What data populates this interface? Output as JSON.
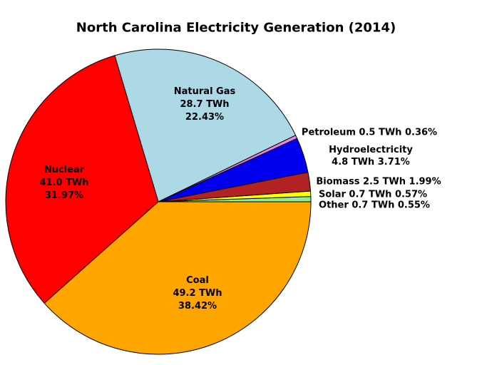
{
  "title": "North Carolina Electricity Generation (2014)",
  "chart_data": {
    "type": "pie",
    "title": "North Carolina Electricity Generation (2014)",
    "unit": "TWh",
    "start_angle_deg": 0,
    "counterclockwise": true,
    "outline_color": "#000000",
    "background_color": "#ffffff",
    "legend": "none",
    "slices": [
      {
        "name": "Other",
        "value_twh": 0.7,
        "percent": 0.55,
        "color": "#90EE90",
        "label_placement": "outside",
        "label_lines": [
          "Other 0.7 TWh 0.55%"
        ]
      },
      {
        "name": "Solar",
        "value_twh": 0.7,
        "percent": 0.57,
        "color": "#FFFF00",
        "label_placement": "outside",
        "label_lines": [
          "Solar 0.7 TWh 0.57%"
        ]
      },
      {
        "name": "Biomass",
        "value_twh": 2.5,
        "percent": 1.99,
        "color": "#B22222",
        "label_placement": "outside",
        "label_lines": [
          "Biomass 2.5 TWh 1.99%"
        ]
      },
      {
        "name": "Hydroelectricity",
        "value_twh": 4.8,
        "percent": 3.71,
        "color": "#0000EE",
        "label_placement": "outside",
        "label_lines": [
          "Hydroelectricity",
          "4.8 TWh 3.71%"
        ]
      },
      {
        "name": "Petroleum",
        "value_twh": 0.5,
        "percent": 0.36,
        "color": "#EE82EE",
        "label_placement": "outside",
        "label_lines": [
          "Petroleum 0.5 TWh 0.36%"
        ]
      },
      {
        "name": "Natural Gas",
        "value_twh": 28.7,
        "percent": 22.43,
        "color": "#ADD8E6",
        "label_placement": "inside",
        "label_lines": [
          "Natural Gas",
          "28.7 TWh",
          "22.43%"
        ]
      },
      {
        "name": "Nuclear",
        "value_twh": 41.0,
        "percent": 31.97,
        "color": "#FF0000",
        "label_placement": "inside",
        "label_lines": [
          "Nuclear",
          "41.0 TWh",
          "31.97%"
        ]
      },
      {
        "name": "Coal",
        "value_twh": 49.2,
        "percent": 38.42,
        "color": "#FFA500",
        "label_placement": "inside",
        "label_lines": [
          "Coal",
          "49.2 TWh",
          "38.42%"
        ]
      }
    ]
  }
}
